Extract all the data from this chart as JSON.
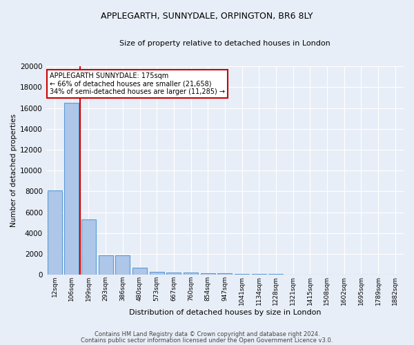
{
  "title1": "APPLEGARTH, SUNNYDALE, ORPINGTON, BR6 8LY",
  "title2": "Size of property relative to detached houses in London",
  "xlabel": "Distribution of detached houses by size in London",
  "ylabel": "Number of detached properties",
  "bin_labels": [
    "12sqm",
    "106sqm",
    "199sqm",
    "293sqm",
    "386sqm",
    "480sqm",
    "573sqm",
    "667sqm",
    "760sqm",
    "854sqm",
    "947sqm",
    "1041sqm",
    "1134sqm",
    "1228sqm",
    "1321sqm",
    "1415sqm",
    "1508sqm",
    "1602sqm",
    "1695sqm",
    "1789sqm",
    "1882sqm"
  ],
  "bar_values": [
    8100,
    16500,
    5300,
    1850,
    1850,
    700,
    300,
    230,
    200,
    175,
    150,
    120,
    100,
    80,
    60,
    50,
    40,
    30,
    25,
    20,
    15
  ],
  "bar_color": "#aec6e8",
  "bar_edge_color": "#5b9bd5",
  "bg_color": "#e8eef7",
  "grid_color": "#ffffff",
  "annotation_title": "APPLEGARTH SUNNYDALE: 175sqm",
  "annotation_line1": "← 66% of detached houses are smaller (21,658)",
  "annotation_line2": "34% of semi-detached houses are larger (11,285) →",
  "annotation_box_color": "#ffffff",
  "annotation_box_edge": "#cc0000",
  "vline_color": "#cc0000",
  "footer1": "Contains HM Land Registry data © Crown copyright and database right 2024.",
  "footer2": "Contains public sector information licensed under the Open Government Licence v3.0.",
  "ylim": [
    0,
    20000
  ],
  "yticks": [
    0,
    2000,
    4000,
    6000,
    8000,
    10000,
    12000,
    14000,
    16000,
    18000,
    20000
  ]
}
